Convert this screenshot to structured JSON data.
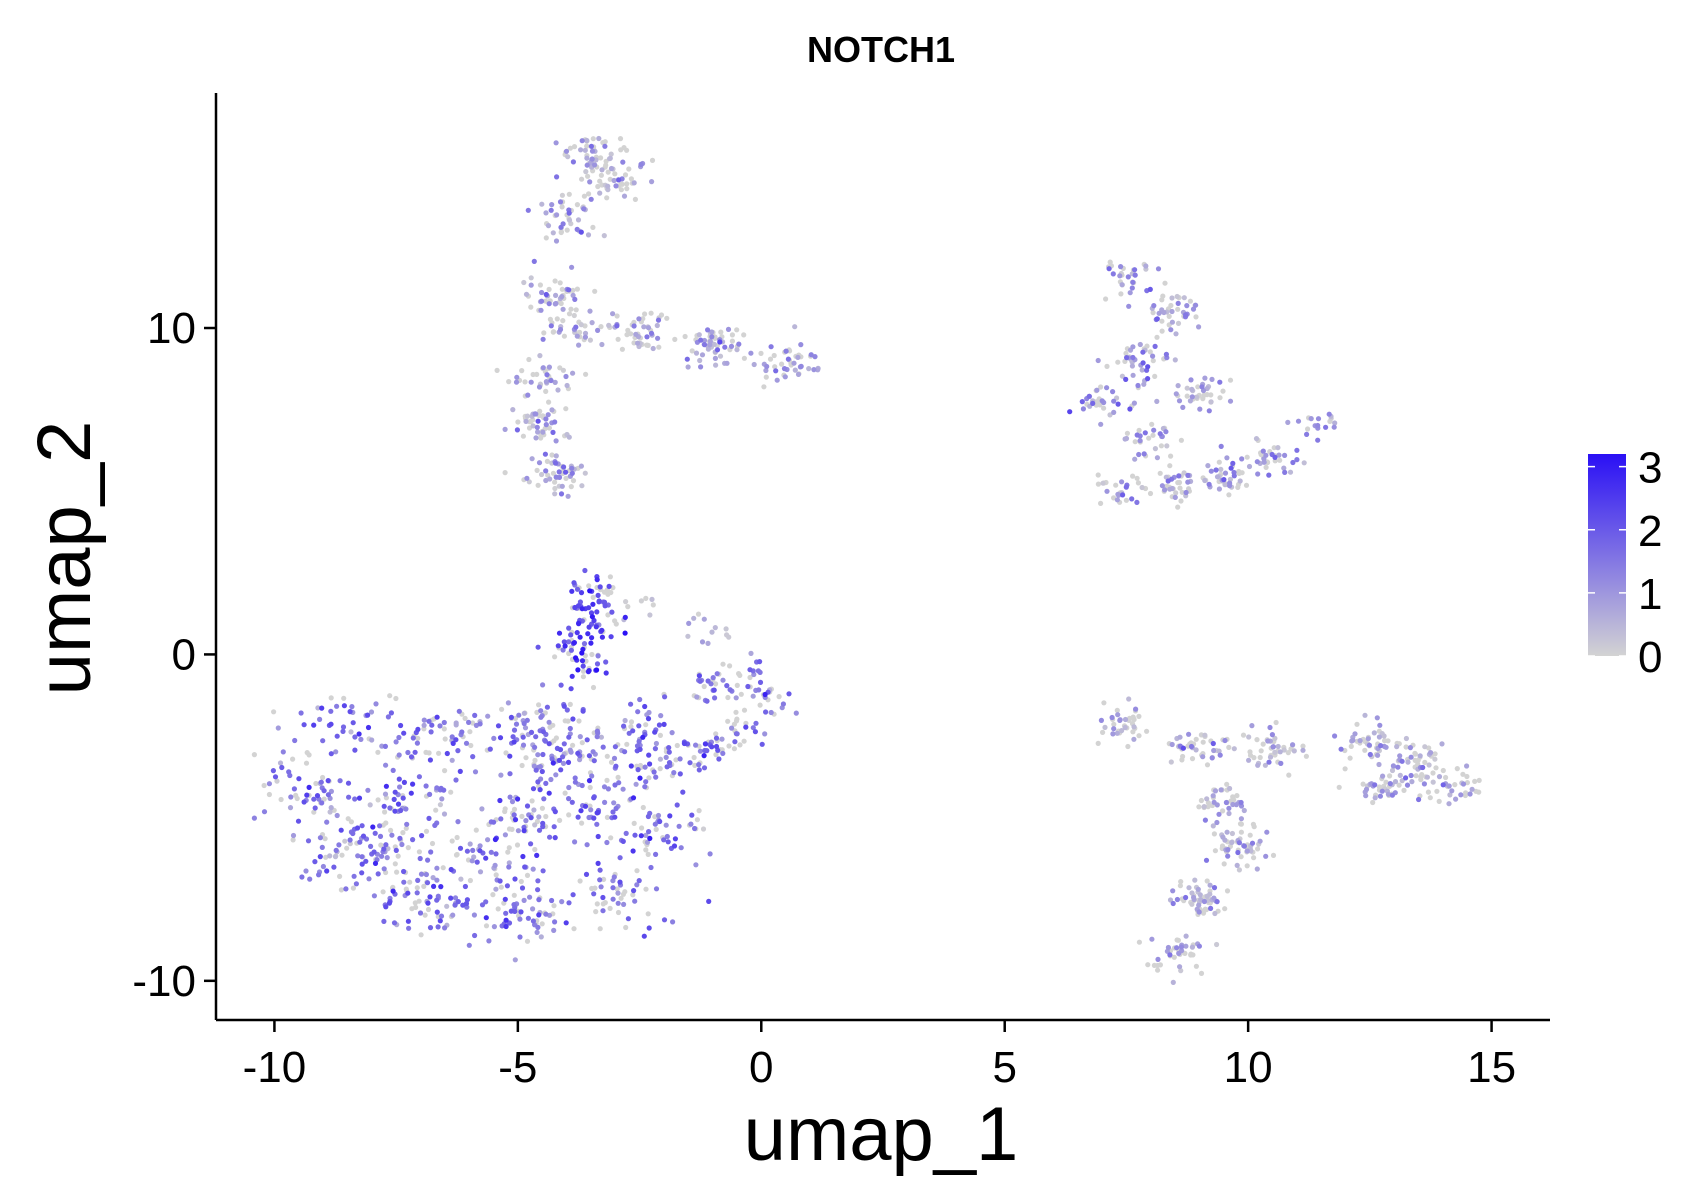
{
  "chart_data": {
    "type": "scatter",
    "title": "NOTCH1",
    "xlabel": "umap_1",
    "ylabel": "umap_2",
    "xlim": [
      -11.2,
      16.2
    ],
    "ylim": [
      -11.2,
      17.2
    ],
    "x_ticks": [
      -10,
      -5,
      0,
      5,
      10,
      15
    ],
    "y_ticks": [
      -10,
      0,
      10
    ],
    "x_tick_labels": [
      "-10",
      "-5",
      "0",
      "5",
      "10",
      "15"
    ],
    "y_tick_labels": [
      "-10",
      "0",
      "10"
    ],
    "grid": false,
    "color_scale": {
      "low": "#d3d3d3",
      "high": "#2a10f5",
      "min": 0,
      "max": 3.2,
      "breaks": [
        0,
        1,
        2,
        3
      ],
      "break_labels": [
        "0",
        "1",
        "2",
        "3"
      ]
    },
    "legend": "right",
    "clusters": [
      {
        "anchors": [
          [
            -8.5,
            -2.2
          ],
          [
            -9.5,
            -4.0
          ],
          [
            -8.5,
            -6.0
          ],
          [
            -6.8,
            -7.5
          ],
          [
            -5.0,
            -8.0
          ],
          [
            -3.0,
            -7.5
          ],
          [
            -2.2,
            -5.5
          ],
          [
            -2.5,
            -3.2
          ],
          [
            -4.5,
            -2.3
          ],
          [
            -6.5,
            -2.4
          ],
          [
            -7.2,
            -4.5
          ],
          [
            -5.0,
            -5.0
          ],
          [
            -3.5,
            -4.5
          ],
          [
            -5.5,
            -6.5
          ],
          [
            -7.5,
            -6.2
          ],
          [
            -4.0,
            -3.0
          ]
        ],
        "spread": 0.55,
        "n": 900,
        "mean_expr": 1.35,
        "expr_sd": 0.6
      },
      {
        "anchors": [
          [
            -2.5,
            -2.0
          ],
          [
            -1.0,
            -1.0
          ],
          [
            -0.4,
            -0.5
          ],
          [
            0.1,
            -1.4
          ],
          [
            -0.3,
            -2.3
          ],
          [
            -1.0,
            -2.8
          ],
          [
            -1.6,
            -3.0
          ]
        ],
        "spread": 0.28,
        "n": 150,
        "mean_expr": 1.4,
        "expr_sd": 0.5
      },
      {
        "anchors": [
          [
            -3.6,
            1.3
          ],
          [
            -3.3,
            0.8
          ],
          [
            -3.8,
            0.3
          ],
          [
            -3.6,
            -0.5
          ],
          [
            -3.4,
            2.0
          ]
        ],
        "spread": 0.25,
        "n": 120,
        "mean_expr": 2.2,
        "expr_sd": 0.5
      },
      {
        "anchors": [
          [
            -2.5,
            1.6
          ],
          [
            -1.5,
            1.1
          ],
          [
            -0.8,
            0.6
          ]
        ],
        "spread": 0.25,
        "n": 20,
        "mean_expr": 0.2,
        "expr_sd": 0.3
      },
      {
        "anchors": [
          [
            -3.5,
            15.3
          ],
          [
            -4.0,
            13.5
          ],
          [
            -4.2,
            11.0
          ],
          [
            -3.8,
            10.0
          ],
          [
            -4.6,
            8.5
          ],
          [
            -4.5,
            7.0
          ],
          [
            -4.3,
            5.5
          ],
          [
            -2.5,
            9.8
          ],
          [
            -1.0,
            9.5
          ],
          [
            0.5,
            9.0
          ],
          [
            -3.0,
            14.5
          ]
        ],
        "spread": 0.32,
        "n": 520,
        "mean_expr": 0.45,
        "expr_sd": 0.55
      },
      {
        "anchors": [
          [
            7.5,
            11.5
          ],
          [
            8.5,
            10.5
          ],
          [
            7.8,
            9.0
          ],
          [
            7.0,
            7.8
          ],
          [
            7.3,
            5.0
          ],
          [
            8.5,
            5.2
          ],
          [
            9.5,
            5.5
          ],
          [
            10.5,
            6.0
          ],
          [
            11.5,
            7.0
          ],
          [
            9.0,
            8.0
          ],
          [
            8.0,
            6.5
          ]
        ],
        "spread": 0.3,
        "n": 380,
        "mean_expr": 0.6,
        "expr_sd": 0.6
      },
      {
        "anchors": [
          [
            7.5,
            -2.2
          ],
          [
            9.0,
            -2.8
          ],
          [
            10.5,
            -2.9
          ],
          [
            12.5,
            -2.7
          ],
          [
            13.5,
            -3.3
          ],
          [
            14.3,
            -4.0
          ],
          [
            12.8,
            -4.0
          ],
          [
            9.5,
            -4.5
          ],
          [
            9.8,
            -5.8
          ],
          [
            9.0,
            -7.5
          ],
          [
            8.6,
            -9.2
          ]
        ],
        "spread": 0.3,
        "n": 500,
        "mean_expr": 0.35,
        "expr_sd": 0.5
      }
    ]
  }
}
